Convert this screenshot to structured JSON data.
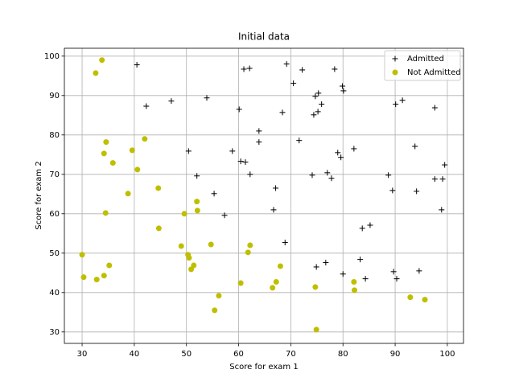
{
  "chart_data": {
    "type": "scatter",
    "title": "Initial data",
    "x_label": "Score for exam 1",
    "y_label": "Score for exam 2",
    "xlim": [
      26.6,
      103.1
    ],
    "ylim": [
      27.1,
      102.0
    ],
    "xticks": [
      30,
      40,
      50,
      60,
      70,
      80,
      90,
      100
    ],
    "yticks": [
      30,
      40,
      50,
      60,
      70,
      80,
      90,
      100
    ],
    "grid": true,
    "legend": "upper right",
    "series": [
      {
        "name": "Admitted",
        "color": "#000000",
        "marker": "+",
        "x": [
          40.5,
          42.3,
          47.1,
          53.9,
          50.4,
          52.0,
          55.3,
          57.3,
          58.8,
          60.1,
          60.4,
          61.3,
          61.0,
          62.1,
          62.2,
          63.9,
          63.9,
          67.1,
          66.7,
          68.4,
          69.2,
          70.5,
          72.2,
          71.6,
          68.9,
          74.1,
          74.4,
          74.7,
          75.3,
          75.2,
          75.9,
          77.0,
          77.8,
          76.7,
          74.9,
          78.4,
          79.0,
          79.9,
          80.1,
          79.6,
          80.0,
          82.1,
          83.7,
          85.2,
          83.3,
          84.3,
          88.7,
          89.5,
          90.1,
          91.4,
          89.7,
          90.3,
          93.8,
          94.1,
          94.6,
          97.6,
          97.6,
          99.1,
          98.9,
          99.5
        ],
        "y": [
          97.8,
          87.3,
          88.6,
          89.4,
          75.9,
          69.6,
          65.1,
          59.6,
          75.9,
          86.5,
          73.3,
          73.1,
          96.7,
          96.9,
          70.0,
          81.0,
          78.2,
          66.5,
          61.0,
          85.7,
          98.0,
          93.1,
          96.5,
          78.6,
          52.7,
          69.8,
          85.1,
          89.8,
          90.6,
          85.9,
          87.8,
          70.4,
          69.0,
          47.6,
          46.5,
          96.7,
          75.5,
          92.4,
          91.2,
          74.3,
          44.7,
          76.5,
          56.3,
          57.1,
          48.4,
          43.5,
          69.8,
          65.9,
          87.8,
          88.8,
          45.3,
          43.5,
          77.1,
          65.7,
          45.5,
          86.9,
          68.8,
          68.8,
          61.0,
          72.4
        ]
      },
      {
        "name": "Not Admitted",
        "color": "#bfbf00",
        "marker": "o",
        "x": [
          32.6,
          33.8,
          34.6,
          34.2,
          35.9,
          34.5,
          30.0,
          30.3,
          32.8,
          34.2,
          35.2,
          38.8,
          39.6,
          40.6,
          42.0,
          44.6,
          44.7,
          49.0,
          49.6,
          50.3,
          50.5,
          50.9,
          51.4,
          52.0,
          52.1,
          54.7,
          55.4,
          56.2,
          60.4,
          61.8,
          62.2,
          66.5,
          67.2,
          68.0,
          74.7,
          74.9,
          82.1,
          82.2,
          92.9,
          95.7
        ],
        "y": [
          95.7,
          99.0,
          78.2,
          75.3,
          72.9,
          60.2,
          49.6,
          43.9,
          43.3,
          44.3,
          46.9,
          65.1,
          76.1,
          71.2,
          79.0,
          66.5,
          56.3,
          51.8,
          60.0,
          49.6,
          48.8,
          45.9,
          46.9,
          63.1,
          60.8,
          52.2,
          35.5,
          39.2,
          42.4,
          50.2,
          52.0,
          41.2,
          42.7,
          46.7,
          41.4,
          30.6,
          42.7,
          40.6,
          38.8,
          38.2
        ]
      }
    ]
  }
}
